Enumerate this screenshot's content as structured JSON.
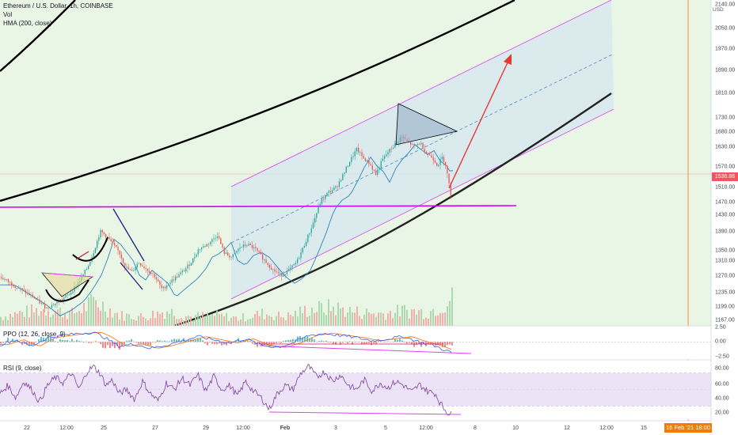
{
  "legend": {
    "symbol": "Ethereum / U.S. Dollar, 1h, COINBASE",
    "vol": "Vol",
    "hma": "HMA (200, close)",
    "ppo": "PPO (12, 26, close, 9)",
    "rsi": "RSI (9, close)"
  },
  "currency": "USD",
  "last_price_label": "1536.86",
  "crosshair_date_label": "16 Feb '21   18:00",
  "colors": {
    "background": "#e9f5e5",
    "channel_fill": "#d4e6ef",
    "channel_border": "#e040fb",
    "up_candle": "#26a69a",
    "down_candle": "#ef5350",
    "curve": "#000000",
    "arrow": "#e53935",
    "hma": "#2e86c1",
    "ppo_line": "#2962ff",
    "ppo_signal": "#ff6d00",
    "rsi_line": "#7e3fa0",
    "rsi_band": "#ede3f7",
    "crosshair": "#f57c00",
    "price_tag": "#f7525f"
  },
  "chart_data": [
    {
      "type": "candlestick",
      "title": "Ethereum / U.S. Dollar, 1h, COINBASE",
      "y_ticks": [
        2140,
        2050,
        1970,
        1890,
        1810,
        1730,
        1680,
        1630,
        1570,
        1510,
        1470,
        1430,
        1390,
        1350,
        1310,
        1270,
        1235,
        1199,
        1167
      ],
      "x_ticks": [
        "22",
        "12:00",
        "25",
        "27",
        "29",
        "12:00",
        "Feb",
        "3",
        "5",
        "12:00",
        "8",
        "10",
        "12",
        "12:00",
        "15",
        "16 Feb '21",
        "18:00"
      ],
      "ylim": [
        1150,
        2150
      ],
      "last_price": 1536.86,
      "price_path": [
        [
          0,
          1300
        ],
        [
          20,
          1270
        ],
        [
          40,
          1240
        ],
        [
          58,
          1205
        ],
        [
          72,
          1222
        ],
        [
          88,
          1250
        ],
        [
          100,
          1290
        ],
        [
          110,
          1330
        ],
        [
          118,
          1380
        ],
        [
          126,
          1440
        ],
        [
          134,
          1425
        ],
        [
          142,
          1400
        ],
        [
          150,
          1375
        ],
        [
          158,
          1330
        ],
        [
          166,
          1315
        ],
        [
          174,
          1345
        ],
        [
          184,
          1325
        ],
        [
          194,
          1305
        ],
        [
          204,
          1262
        ],
        [
          212,
          1280
        ],
        [
          222,
          1300
        ],
        [
          232,
          1320
        ],
        [
          242,
          1350
        ],
        [
          250,
          1385
        ],
        [
          258,
          1395
        ],
        [
          266,
          1410
        ],
        [
          274,
          1430
        ],
        [
          282,
          1375
        ],
        [
          292,
          1360
        ],
        [
          302,
          1390
        ],
        [
          312,
          1400
        ],
        [
          322,
          1385
        ],
        [
          334,
          1350
        ],
        [
          344,
          1322
        ],
        [
          354,
          1305
        ],
        [
          364,
          1320
        ],
        [
          374,
          1345
        ],
        [
          384,
          1400
        ],
        [
          394,
          1460
        ],
        [
          404,
          1530
        ],
        [
          414,
          1560
        ],
        [
          424,
          1575
        ],
        [
          434,
          1620
        ],
        [
          442,
          1660
        ],
        [
          450,
          1692
        ],
        [
          458,
          1665
        ],
        [
          466,
          1648
        ],
        [
          474,
          1615
        ],
        [
          482,
          1658
        ],
        [
          490,
          1685
        ],
        [
          498,
          1705
        ],
        [
          506,
          1730
        ],
        [
          514,
          1715
        ],
        [
          522,
          1700
        ],
        [
          530,
          1712
        ],
        [
          538,
          1680
        ],
        [
          546,
          1665
        ],
        [
          552,
          1642
        ],
        [
          558,
          1668
        ],
        [
          562,
          1645
        ],
        [
          565,
          1605
        ],
        [
          568,
          1560
        ],
        [
          570,
          1536
        ]
      ],
      "volume_path": [
        [
          0,
          0.3
        ],
        [
          30,
          0.45
        ],
        [
          60,
          0.55
        ],
        [
          90,
          0.4
        ],
        [
          120,
          0.8
        ],
        [
          150,
          0.35
        ],
        [
          180,
          0.3
        ],
        [
          210,
          0.5
        ],
        [
          240,
          0.3
        ],
        [
          270,
          0.35
        ],
        [
          300,
          0.25
        ],
        [
          330,
          0.4
        ],
        [
          360,
          0.3
        ],
        [
          390,
          0.55
        ],
        [
          420,
          0.6
        ],
        [
          450,
          0.45
        ],
        [
          480,
          0.4
        ],
        [
          510,
          0.5
        ],
        [
          540,
          0.45
        ],
        [
          570,
          0.9
        ]
      ]
    },
    {
      "type": "histogram+line",
      "title": "PPO (12, 26, close, 9)",
      "y_ticks": [
        2.5,
        0.0,
        -2.5
      ],
      "ylim": [
        -3.2,
        3.0
      ],
      "line": [
        [
          0,
          -0.5
        ],
        [
          20,
          0.4
        ],
        [
          40,
          -0.8
        ],
        [
          60,
          0.8
        ],
        [
          80,
          1.2
        ],
        [
          100,
          1.6
        ],
        [
          118,
          1.8
        ],
        [
          130,
          1.0
        ],
        [
          150,
          -0.8
        ],
        [
          170,
          -0.4
        ],
        [
          190,
          -1.2
        ],
        [
          210,
          -0.6
        ],
        [
          230,
          0.2
        ],
        [
          250,
          1.0
        ],
        [
          270,
          0.4
        ],
        [
          290,
          -0.2
        ],
        [
          310,
          0.6
        ],
        [
          330,
          -0.6
        ],
        [
          350,
          -1.0
        ],
        [
          370,
          -0.2
        ],
        [
          390,
          1.2
        ],
        [
          410,
          1.6
        ],
        [
          430,
          1.2
        ],
        [
          450,
          0.8
        ],
        [
          470,
          0.2
        ],
        [
          490,
          0.6
        ],
        [
          510,
          1.0
        ],
        [
          530,
          0.0
        ],
        [
          550,
          -0.8
        ],
        [
          560,
          -1.4
        ],
        [
          570,
          -2.0
        ]
      ]
    },
    {
      "type": "line",
      "title": "RSI (9, close)",
      "y_ticks": [
        80.0,
        60.0,
        40.0,
        20.0
      ],
      "ylim": [
        14,
        86
      ],
      "band": [
        30,
        70
      ],
      "values": [
        [
          0,
          45
        ],
        [
          10,
          55
        ],
        [
          20,
          40
        ],
        [
          30,
          60
        ],
        [
          40,
          50
        ],
        [
          50,
          35
        ],
        [
          60,
          55
        ],
        [
          70,
          65
        ],
        [
          80,
          58
        ],
        [
          90,
          70
        ],
        [
          100,
          50
        ],
        [
          110,
          72
        ],
        [
          118,
          78
        ],
        [
          126,
          70
        ],
        [
          134,
          55
        ],
        [
          142,
          62
        ],
        [
          150,
          45
        ],
        [
          160,
          50
        ],
        [
          170,
          38
        ],
        [
          180,
          60
        ],
        [
          190,
          45
        ],
        [
          200,
          36
        ],
        [
          210,
          58
        ],
        [
          220,
          50
        ],
        [
          230,
          64
        ],
        [
          240,
          55
        ],
        [
          250,
          68
        ],
        [
          260,
          48
        ],
        [
          270,
          66
        ],
        [
          280,
          50
        ],
        [
          290,
          55
        ],
        [
          300,
          42
        ],
        [
          310,
          60
        ],
        [
          320,
          48
        ],
        [
          330,
          40
        ],
        [
          340,
          26
        ],
        [
          350,
          45
        ],
        [
          360,
          55
        ],
        [
          370,
          50
        ],
        [
          380,
          70
        ],
        [
          390,
          78
        ],
        [
          400,
          65
        ],
        [
          410,
          72
        ],
        [
          420,
          60
        ],
        [
          430,
          68
        ],
        [
          440,
          55
        ],
        [
          450,
          50
        ],
        [
          460,
          62
        ],
        [
          470,
          48
        ],
        [
          480,
          58
        ],
        [
          490,
          52
        ],
        [
          500,
          60
        ],
        [
          510,
          55
        ],
        [
          520,
          47
        ],
        [
          530,
          56
        ],
        [
          540,
          48
        ],
        [
          550,
          45
        ],
        [
          555,
          35
        ],
        [
          560,
          28
        ],
        [
          565,
          22
        ],
        [
          570,
          20
        ]
      ]
    }
  ]
}
